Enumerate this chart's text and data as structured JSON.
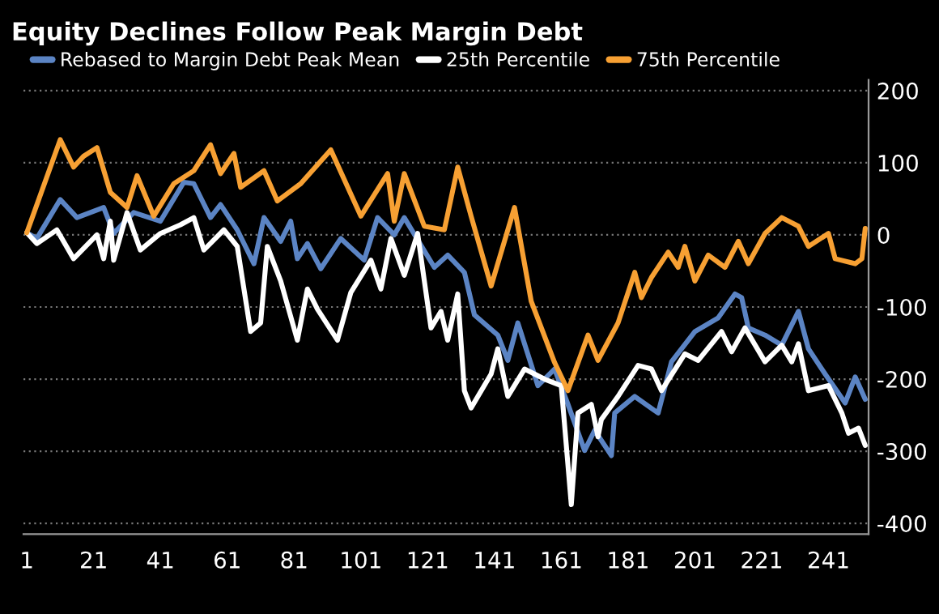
{
  "chart_data": {
    "type": "line",
    "title": "Equity Declines Follow Peak Margin Debt",
    "series": [
      {
        "name": "Rebased to Margin Debt Peak Mean",
        "color": "#5b84c4",
        "x": [
          1,
          4,
          11,
          16,
          24,
          27,
          33,
          41,
          48,
          51,
          56,
          59,
          64,
          69,
          72,
          77,
          80,
          82,
          85,
          89,
          95,
          102,
          106,
          111,
          114,
          123,
          127,
          132,
          135,
          142,
          145,
          148,
          154,
          159,
          163,
          168,
          171,
          176,
          177,
          183,
          190,
          194,
          201,
          208,
          213,
          215,
          217,
          222,
          227,
          232,
          235,
          240,
          246,
          249,
          252
        ],
        "values": [
          3,
          -5,
          49,
          24,
          38,
          2,
          31,
          19,
          73,
          71,
          24,
          42,
          7,
          -40,
          24,
          -9,
          19,
          -33,
          -12,
          -47,
          -5,
          -35,
          24,
          0,
          24,
          -45,
          -28,
          -52,
          -111,
          -139,
          -174,
          -122,
          -209,
          -186,
          -235,
          -299,
          -271,
          -306,
          -247,
          -224,
          -247,
          -176,
          -134,
          -115,
          -82,
          -87,
          -129,
          -139,
          -153,
          -106,
          -158,
          -193,
          -233,
          -197,
          -228
        ]
      },
      {
        "name": "25th Percentile",
        "color": "#ffffff",
        "x": [
          1,
          4,
          10,
          15,
          22,
          24,
          26,
          27,
          31,
          35,
          41,
          47,
          51,
          54,
          60,
          64,
          68,
          71,
          73,
          77,
          82,
          85,
          88,
          94,
          98,
          104,
          107,
          110,
          114,
          118,
          122,
          125,
          127,
          130,
          132,
          134,
          140,
          142,
          145,
          150,
          156,
          161,
          164,
          166,
          170,
          172,
          173,
          178,
          184,
          188,
          191,
          198,
          202,
          209,
          212,
          216,
          222,
          227,
          230,
          232,
          235,
          241,
          245,
          247,
          250,
          252
        ],
        "values": [
          3,
          -12,
          7,
          -33,
          0,
          -33,
          19,
          -35,
          31,
          -21,
          2,
          14,
          24,
          -21,
          7,
          -16,
          -134,
          -122,
          -16,
          -64,
          -146,
          -75,
          -103,
          -146,
          -80,
          -35,
          -75,
          -5,
          -56,
          2,
          -129,
          -106,
          -146,
          -82,
          -216,
          -240,
          -193,
          -158,
          -224,
          -186,
          -200,
          -209,
          -374,
          -247,
          -235,
          -280,
          -256,
          -224,
          -181,
          -186,
          -216,
          -165,
          -174,
          -134,
          -162,
          -129,
          -176,
          -153,
          -176,
          -151,
          -216,
          -209,
          -247,
          -275,
          -268,
          -292
        ]
      },
      {
        "name": "75th Percentile",
        "color": "#f7a033",
        "x": [
          1,
          11,
          15,
          18,
          22,
          26,
          31,
          34,
          39,
          45,
          51,
          56,
          59,
          63,
          65,
          72,
          76,
          83,
          92,
          101,
          109,
          111,
          114,
          120,
          126,
          130,
          134,
          140,
          147,
          152,
          159,
          163,
          169,
          172,
          178,
          183,
          185,
          188,
          193,
          196,
          198,
          201,
          205,
          210,
          214,
          217,
          222,
          227,
          232,
          235,
          241,
          243,
          249,
          251,
          252
        ],
        "values": [
          3,
          132,
          94,
          109,
          121,
          59,
          38,
          82,
          26,
          71,
          89,
          125,
          85,
          113,
          66,
          89,
          47,
          71,
          118,
          26,
          85,
          19,
          85,
          12,
          7,
          94,
          26,
          -71,
          38,
          -92,
          -177,
          -216,
          -139,
          -174,
          -122,
          -52,
          -87,
          -59,
          -24,
          -45,
          -16,
          -64,
          -28,
          -45,
          -9,
          -40,
          2,
          24,
          12,
          -16,
          2,
          -33,
          -40,
          -33,
          9
        ]
      }
    ],
    "xlim": [
      0,
      253
    ],
    "xticks": [
      1,
      21,
      41,
      61,
      81,
      101,
      121,
      141,
      161,
      181,
      201,
      221,
      241
    ],
    "ylim": [
      -415,
      215
    ],
    "yticks": [
      -400,
      -300,
      -200,
      -100,
      0,
      100,
      200
    ],
    "grid": "y",
    "legend": "top left",
    "line_style": "solid",
    "marker": "none"
  }
}
